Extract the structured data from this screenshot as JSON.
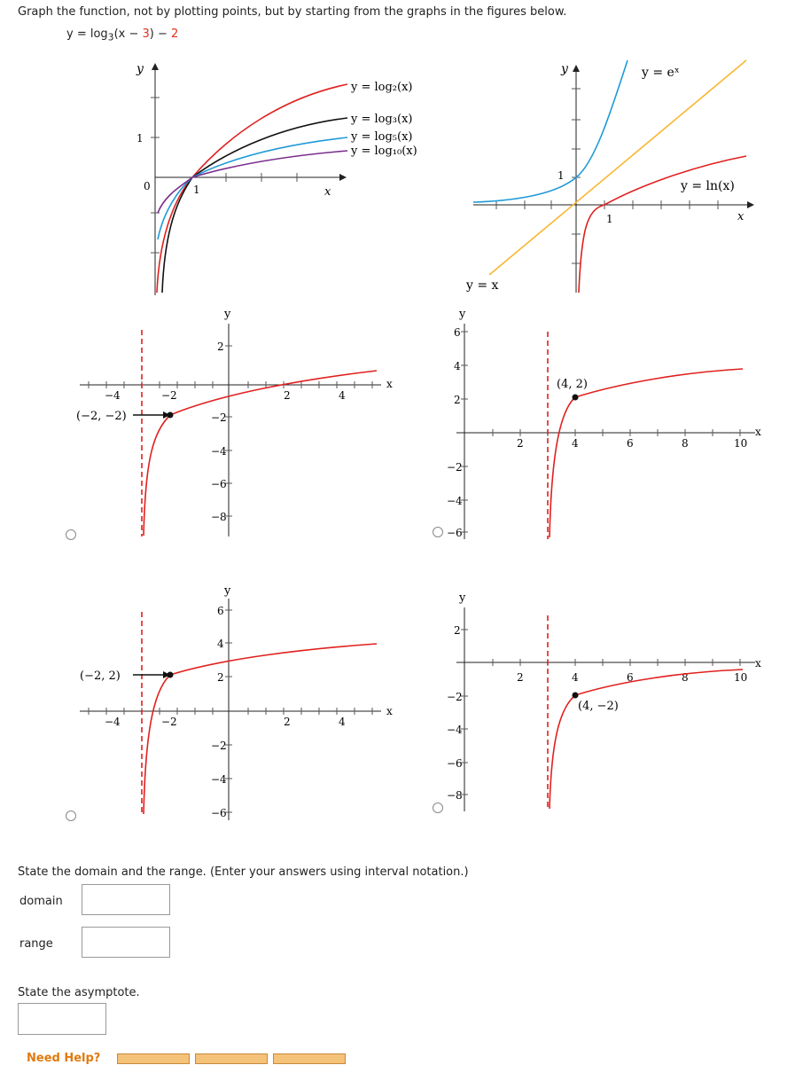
{
  "question": {
    "prompt": "Graph the function, not by plotting points, but by starting from the graphs in the figures below.",
    "fn_prefix": "y = log",
    "fn_base": "3",
    "fn_open": "(x − ",
    "fn_shift": "3",
    "fn_close": ") − ",
    "fn_down": "2"
  },
  "ref_graph1": {
    "y_axis": "y",
    "x_axis": "x",
    "tick_y": "1",
    "origin": "0",
    "tick_x": "1",
    "labels": [
      "y = log₂(x)",
      "y = log₃(x)",
      "y = log₅(x)",
      "y = log₁₀(x)"
    ],
    "colors": [
      "#e0201e",
      "#111111",
      "#1e9ad6",
      "#7a2d8c"
    ]
  },
  "ref_graph2": {
    "y_axis": "y",
    "x_axis": "x",
    "tick_y": "1",
    "tick_x": "1",
    "exp_label": "y = eˣ",
    "ln_label": "y = ln(x)",
    "identity_label": "y = x",
    "colors": {
      "exp": "#1e9ad6",
      "ln": "#e0201e",
      "identity": "#f7b731"
    }
  },
  "options": [
    {
      "id": "A",
      "x_ticks": [
        "−4",
        "−2",
        "2",
        "4"
      ],
      "y_ticks": [
        "2",
        "−2",
        "−4",
        "−6",
        "−8"
      ],
      "x_axis": "x",
      "y_axis": "y",
      "point_label": "(−2, −2)"
    },
    {
      "id": "B",
      "x_ticks": [
        "2",
        "4",
        "6",
        "8",
        "10"
      ],
      "y_ticks": [
        "6",
        "4",
        "2",
        "−2",
        "−4",
        "−6"
      ],
      "x_axis": "x",
      "y_axis": "y",
      "point_label": "(4, 2)"
    },
    {
      "id": "C",
      "x_ticks": [
        "−4",
        "−2",
        "2",
        "4"
      ],
      "y_ticks": [
        "6",
        "4",
        "2",
        "−2",
        "−4",
        "−6"
      ],
      "x_axis": "x",
      "y_axis": "y",
      "point_label": "(−2, 2)"
    },
    {
      "id": "D",
      "x_ticks": [
        "2",
        "4",
        "6",
        "8",
        "10"
      ],
      "y_ticks": [
        "2",
        "−2",
        "−4",
        "−6",
        "−8"
      ],
      "x_axis": "x",
      "y_axis": "y",
      "point_label": "(4, −2)"
    }
  ],
  "answers": {
    "instruction": "State the domain and the range. (Enter your answers using interval notation.)",
    "domain_label": "domain",
    "range_label": "range",
    "asymptote_instruction": "State the asymptote.",
    "domain_value": "",
    "range_value": "",
    "asymptote_value": ""
  },
  "help": {
    "label": "Need Help?"
  }
}
